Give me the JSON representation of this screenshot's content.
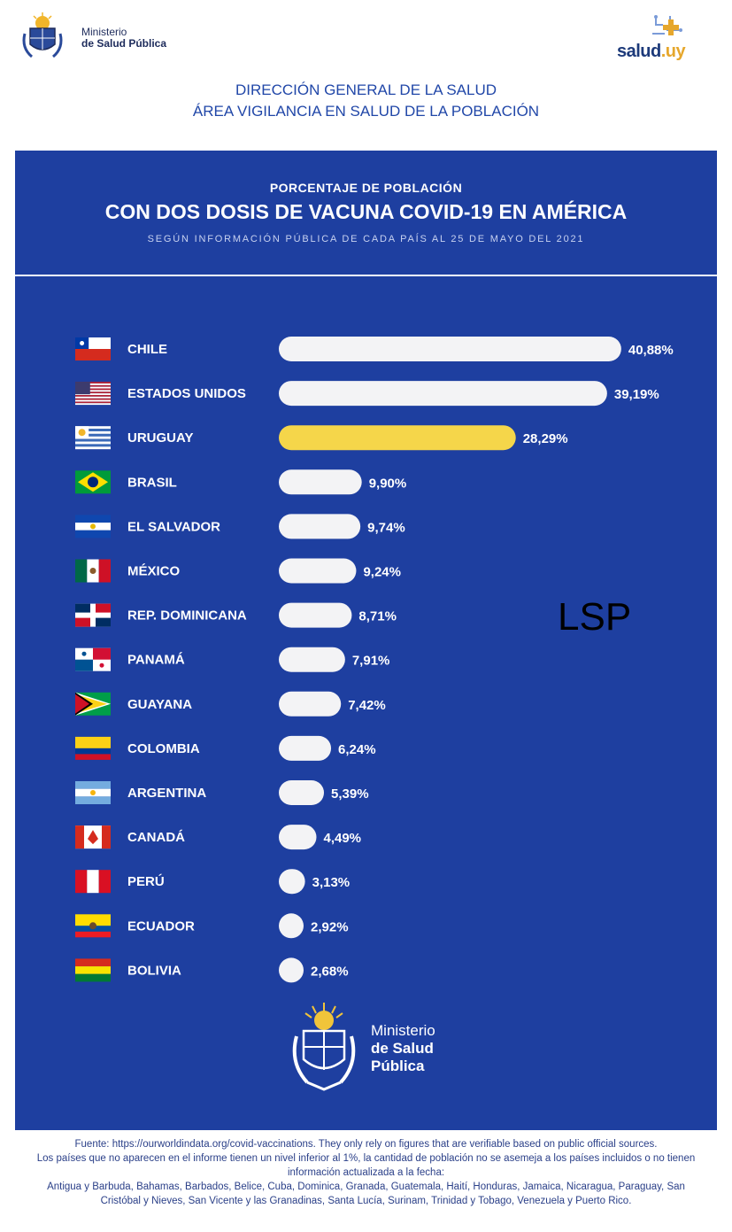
{
  "header": {
    "ministerio_line1": "Ministerio",
    "ministerio_line2": "de Salud Pública",
    "salud_brand": "salud",
    "salud_tld": ".uy",
    "direccion_line1": "DIRECCIÓN GENERAL DE LA SALUD",
    "direccion_line2": "ÁREA VIGILANCIA EN SALUD DE LA POBLACIÓN"
  },
  "watermark": "LSP",
  "bottom_logo": {
    "line1": "Ministerio",
    "line2": "de Salud",
    "line3": "Pública"
  },
  "footer": {
    "line1": "Fuente: https://ourworldindata.org/covid-vaccinations. They only rely on figures that are verifiable based on public official sources.",
    "line2": "Los países que no aparecen en el informe tienen un nivel inferior al 1%, la cantidad de población no se asemeja a los países incluidos o no tienen información actualizada a la fecha:",
    "line3": "Antigua y Barbuda, Bahamas, Barbados, Belice, Cuba, Dominica, Granada, Guatemala, Haití, Honduras, Jamaica, Nicaragua, Paraguay, San Cristóbal y Nieves, San Vicente y las Granadinas, Santa Lucía, Surinam, Trinidad y Tobago, Venezuela y Puerto Rico."
  },
  "colors": {
    "panel": "#1e3fa0",
    "bar": "#f3f3f5",
    "highlight": "#f5d64a",
    "header_text": "#2147a8"
  },
  "chart_data": {
    "type": "bar",
    "orientation": "horizontal",
    "title_top": "PORCENTAJE DE POBLACIÓN",
    "title": "CON DOS DOSIS DE VACUNA COVID-19 EN AMÉRICA",
    "subtitle": "SEGÚN INFORMACIÓN PÚBLICA DE CADA PAÍS AL 25 DE MAYO DEL 2021",
    "highlight_category": "URUGUAY",
    "categories": [
      "CHILE",
      "ESTADOS UNIDOS",
      "URUGUAY",
      "BRASIL",
      "EL SALVADOR",
      "MÉXICO",
      "REP. DOMINICANA",
      "PANAMÁ",
      "GUAYANA",
      "COLOMBIA",
      "ARGENTINA",
      "CANADÁ",
      "PERÚ",
      "ECUADOR",
      "BOLIVIA"
    ],
    "values": [
      40.88,
      39.19,
      28.29,
      9.9,
      9.74,
      9.24,
      8.71,
      7.91,
      7.42,
      6.24,
      5.39,
      4.49,
      3.13,
      2.92,
      2.68
    ],
    "value_labels": [
      "40,88%",
      "39,19%",
      "28,29%",
      "9,90%",
      "9,74%",
      "9,24%",
      "8,71%",
      "7,91%",
      "7,42%",
      "6,24%",
      "5,39%",
      "4,49%",
      "3,13%",
      "2,92%",
      "2,68%"
    ],
    "flags": [
      "chile-flag",
      "usa-flag",
      "uruguay-flag",
      "brazil-flag",
      "el-salvador-flag",
      "mexico-flag",
      "dominican-republic-flag",
      "panama-flag",
      "guyana-flag",
      "colombia-flag",
      "argentina-flag",
      "canada-flag",
      "peru-flag",
      "ecuador-flag",
      "bolivia-flag"
    ],
    "xlim": [
      0,
      41
    ],
    "grid": false,
    "legend": "none"
  }
}
